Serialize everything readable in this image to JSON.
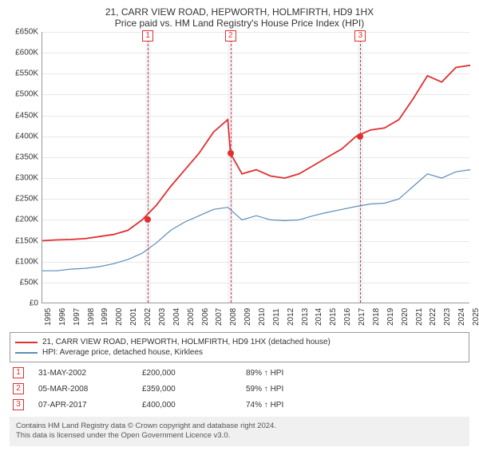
{
  "title_line1": "21, CARR VIEW ROAD, HEPWORTH, HOLMFIRTH, HD9 1HX",
  "title_line2": "Price paid vs. HM Land Registry's House Price Index (HPI)",
  "chart": {
    "type": "line",
    "background_color": "#ffffff",
    "grid_color": "#e8e8e8",
    "axis_color": "#999999",
    "ylim": [
      0,
      650000
    ],
    "ytick_step": 50000,
    "ytick_labels": [
      "£0",
      "£50K",
      "£100K",
      "£150K",
      "£200K",
      "£250K",
      "£300K",
      "£350K",
      "£400K",
      "£450K",
      "£500K",
      "£550K",
      "£600K",
      "£650K"
    ],
    "xlim": [
      1995,
      2025
    ],
    "xtick_years": [
      1995,
      1996,
      1997,
      1998,
      1999,
      2000,
      2001,
      2002,
      2003,
      2004,
      2005,
      2006,
      2007,
      2008,
      2009,
      2010,
      2011,
      2012,
      2013,
      2014,
      2015,
      2016,
      2017,
      2018,
      2019,
      2020,
      2021,
      2022,
      2023,
      2024,
      2025
    ],
    "marker_band_color": "#e6eef7",
    "marker_line_color": "#e03030",
    "marker_dot_color": "#e03030",
    "series": [
      {
        "name": "property",
        "label": "21, CARR VIEW ROAD, HEPWORTH, HOLMFIRTH, HD9 1HX (detached house)",
        "color": "#e03030",
        "line_width": 1.8,
        "points": [
          [
            1995,
            150000
          ],
          [
            1996,
            152000
          ],
          [
            1997,
            153000
          ],
          [
            1998,
            155000
          ],
          [
            1999,
            160000
          ],
          [
            2000,
            165000
          ],
          [
            2001,
            175000
          ],
          [
            2002,
            200000
          ],
          [
            2003,
            235000
          ],
          [
            2004,
            280000
          ],
          [
            2005,
            320000
          ],
          [
            2006,
            360000
          ],
          [
            2007,
            410000
          ],
          [
            2008,
            440000
          ],
          [
            2008.2,
            359000
          ],
          [
            2009,
            310000
          ],
          [
            2010,
            320000
          ],
          [
            2011,
            305000
          ],
          [
            2012,
            300000
          ],
          [
            2013,
            310000
          ],
          [
            2014,
            330000
          ],
          [
            2015,
            350000
          ],
          [
            2016,
            370000
          ],
          [
            2017,
            400000
          ],
          [
            2018,
            415000
          ],
          [
            2019,
            420000
          ],
          [
            2020,
            440000
          ],
          [
            2021,
            490000
          ],
          [
            2022,
            545000
          ],
          [
            2023,
            530000
          ],
          [
            2024,
            565000
          ],
          [
            2025,
            570000
          ]
        ]
      },
      {
        "name": "hpi",
        "label": "HPI: Average price, detached house, Kirklees",
        "color": "#5b8db8",
        "line_width": 1.2,
        "points": [
          [
            1995,
            78000
          ],
          [
            1996,
            78000
          ],
          [
            1997,
            82000
          ],
          [
            1998,
            84000
          ],
          [
            1999,
            88000
          ],
          [
            2000,
            95000
          ],
          [
            2001,
            105000
          ],
          [
            2002,
            120000
          ],
          [
            2003,
            145000
          ],
          [
            2004,
            175000
          ],
          [
            2005,
            195000
          ],
          [
            2006,
            210000
          ],
          [
            2007,
            225000
          ],
          [
            2008,
            230000
          ],
          [
            2009,
            200000
          ],
          [
            2010,
            210000
          ],
          [
            2011,
            200000
          ],
          [
            2012,
            198000
          ],
          [
            2013,
            200000
          ],
          [
            2014,
            210000
          ],
          [
            2015,
            218000
          ],
          [
            2016,
            225000
          ],
          [
            2017,
            232000
          ],
          [
            2018,
            238000
          ],
          [
            2019,
            240000
          ],
          [
            2020,
            250000
          ],
          [
            2021,
            280000
          ],
          [
            2022,
            310000
          ],
          [
            2023,
            300000
          ],
          [
            2024,
            315000
          ],
          [
            2025,
            320000
          ]
        ]
      }
    ],
    "markers": [
      {
        "num": "1",
        "year": 2002.4,
        "price": 200000,
        "band_start": 2002.2,
        "band_end": 2002.6
      },
      {
        "num": "2",
        "year": 2008.2,
        "price": 359000,
        "band_start": 2008.0,
        "band_end": 2008.4
      },
      {
        "num": "3",
        "year": 2017.3,
        "price": 400000,
        "band_start": 2017.1,
        "band_end": 2017.5
      }
    ]
  },
  "legend": {
    "items": [
      {
        "color": "#e03030",
        "label": "21, CARR VIEW ROAD, HEPWORTH, HOLMFIRTH, HD9 1HX (detached house)"
      },
      {
        "color": "#5b8db8",
        "label": "HPI: Average price, detached house, Kirklees"
      }
    ]
  },
  "sales": [
    {
      "num": "1",
      "date": "31-MAY-2002",
      "price": "£200,000",
      "hpi": "89% ↑ HPI"
    },
    {
      "num": "2",
      "date": "05-MAR-2008",
      "price": "£359,000",
      "hpi": "59% ↑ HPI"
    },
    {
      "num": "3",
      "date": "07-APR-2017",
      "price": "£400,000",
      "hpi": "74% ↑ HPI"
    }
  ],
  "license_line1": "Contains HM Land Registry data © Crown copyright and database right 2024.",
  "license_line2": "This data is licensed under the Open Government Licence v3.0."
}
